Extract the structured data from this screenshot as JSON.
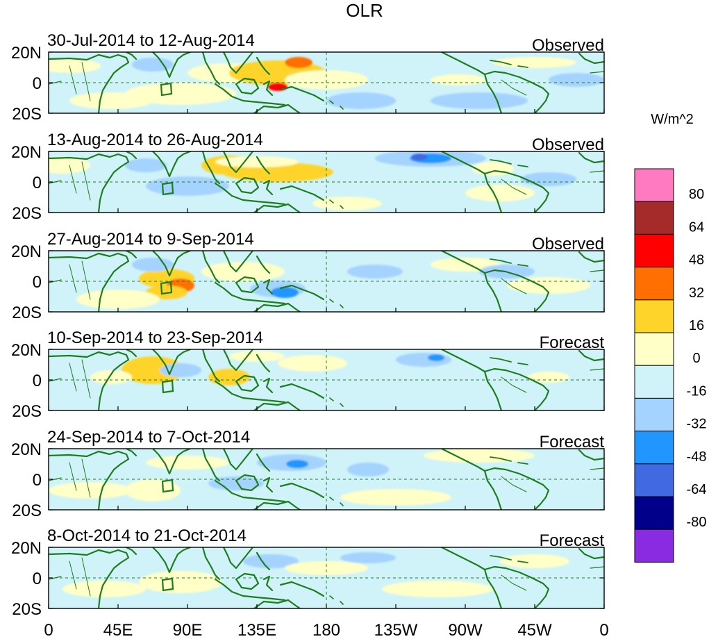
{
  "figure": {
    "title": "OLR",
    "unit": "W/m^2"
  },
  "panels": [
    {
      "period": "30-Jul-2014 to 12-Aug-2014",
      "kind": "Observed"
    },
    {
      "period": "13-Aug-2014 to 26-Aug-2014",
      "kind": "Observed"
    },
    {
      "period": "27-Aug-2014 to 9-Sep-2014",
      "kind": "Observed"
    },
    {
      "period": "10-Sep-2014 to 23-Sep-2014",
      "kind": "Forecast"
    },
    {
      "period": "24-Sep-2014 to 7-Oct-2014",
      "kind": "Forecast"
    },
    {
      "period": "8-Oct-2014 to 21-Oct-2014",
      "kind": "Forecast"
    }
  ],
  "lat_labels": [
    "20N",
    "0",
    "20S"
  ],
  "lon_labels": [
    "0",
    "45E",
    "90E",
    "135E",
    "180",
    "135W",
    "90W",
    "45W",
    "0"
  ],
  "colorbar": {
    "levels": [
      "80",
      "64",
      "48",
      "32",
      "16",
      "0",
      "-16",
      "-32",
      "-48",
      "-64",
      "-80"
    ],
    "colors": [
      "#ff7ac0",
      "#a52a2a",
      "#ff0000",
      "#ff7000",
      "#ffd42a",
      "#ffffc8",
      "#cff3f8",
      "#a5d3ff",
      "#2196ff",
      "#4169e1",
      "#00008b",
      "#8a2be2"
    ]
  },
  "palette": {
    "neutral": "#cff3f8",
    "land": "#1e7d1e"
  }
}
